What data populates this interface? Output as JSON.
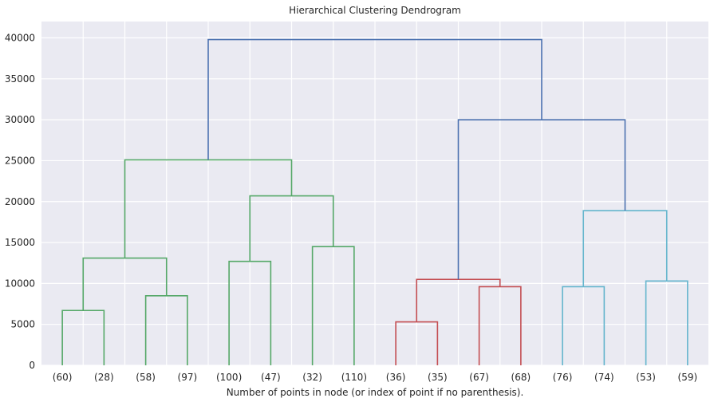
{
  "chart_data": {
    "type": "dendrogram",
    "title": "Hierarchical Clustering Dendrogram",
    "xlabel": "Number of points in node (or index of point if no parenthesis).",
    "ylabel": "",
    "ylim": [
      0,
      42000
    ],
    "yticks": [
      0,
      5000,
      10000,
      15000,
      20000,
      25000,
      30000,
      35000,
      40000
    ],
    "grid": true,
    "background_color": "#eaeaf2",
    "grid_color": "#ffffff",
    "leaves": [
      "(60)",
      "(28)",
      "(58)",
      "(97)",
      "(100)",
      "(47)",
      "(32)",
      "(110)",
      "(36)",
      "(35)",
      "(67)",
      "(68)",
      "(76)",
      "(74)",
      "(53)",
      "(59)"
    ],
    "links": [
      {
        "left": 0,
        "right": 1,
        "height": 6700,
        "color": "#55a868"
      },
      {
        "left": 2,
        "right": 3,
        "height": 8500,
        "color": "#55a868"
      },
      {
        "left": 0.5,
        "right": 2.5,
        "height": 13100,
        "color": "#55a868"
      },
      {
        "left": 4,
        "right": 5,
        "height": 12700,
        "color": "#55a868"
      },
      {
        "left": 6,
        "right": 7,
        "height": 14500,
        "color": "#55a868"
      },
      {
        "left": 4.5,
        "right": 6.5,
        "height": 20700,
        "color": "#55a868"
      },
      {
        "left": 1.5,
        "right": 5.5,
        "height": 25100,
        "color": "#55a868"
      },
      {
        "left": 8,
        "right": 9,
        "height": 5300,
        "color": "#c44e52"
      },
      {
        "left": 10,
        "right": 11,
        "height": 9600,
        "color": "#c44e52"
      },
      {
        "left": 8.5,
        "right": 10.5,
        "height": 10500,
        "color": "#c44e52"
      },
      {
        "left": 12,
        "right": 13,
        "height": 9600,
        "color": "#64b5cd"
      },
      {
        "left": 14,
        "right": 15,
        "height": 10300,
        "color": "#64b5cd"
      },
      {
        "left": 12.5,
        "right": 14.5,
        "height": 18900,
        "color": "#64b5cd"
      },
      {
        "left": 9.5,
        "right": 13.5,
        "height": 30000,
        "color": "#4c72b0"
      },
      {
        "left": 3.5,
        "right": 11.5,
        "height": 39800,
        "color": "#4c72b0"
      }
    ]
  }
}
